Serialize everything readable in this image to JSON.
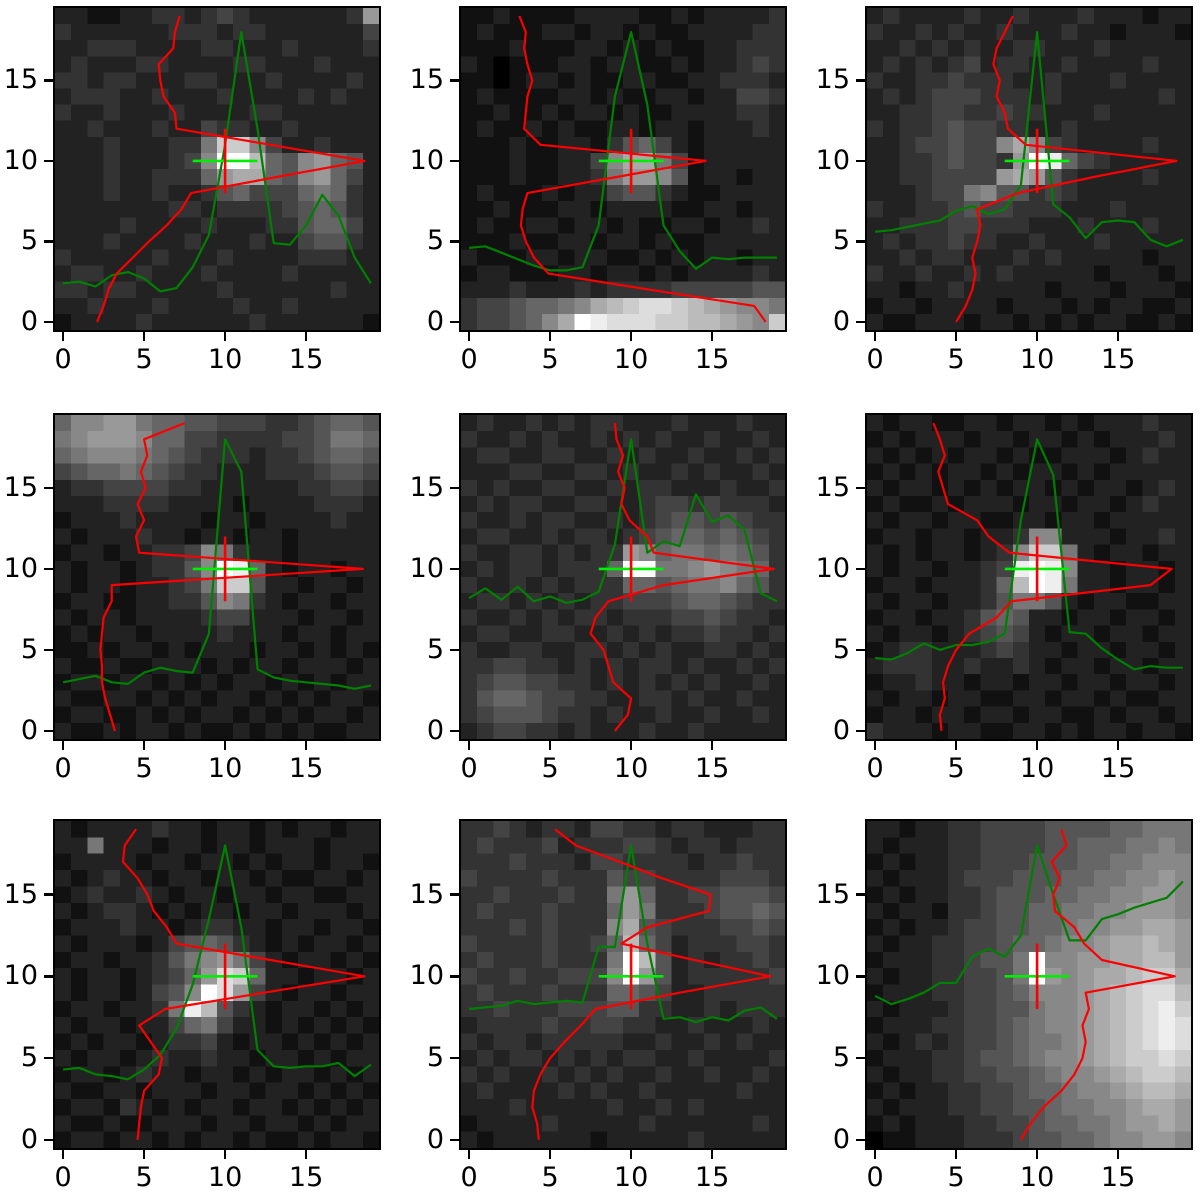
{
  "figure": {
    "background": "#ffffff",
    "description": "3x3 grid of grayscale 20x20 image cutouts, each overlaid with a green horizontal-cut profile curve, a red vertical-cut profile curve, and a green/red crosshair marker at pixel (10,10)."
  },
  "chart_data": {
    "type": "heatmap",
    "grid": {
      "rows": 3,
      "cols": 3
    },
    "axis": {
      "xlim": [
        -0.5,
        19.5
      ],
      "ylim": [
        -0.5,
        19.5
      ],
      "xticks": [
        0,
        5,
        10,
        15
      ],
      "yticks": [
        0,
        5,
        10,
        15
      ],
      "xtick_labels": [
        "0",
        "5",
        "10",
        "15"
      ],
      "ytick_labels": [
        "0",
        "5",
        "10",
        "15"
      ]
    },
    "colors": {
      "row_profile_green": "#008000",
      "col_profile_red": "#fb0000",
      "crosshair_h_green": "#00ee00",
      "crosshair_v_red": "#fb0000",
      "spine": "#000000",
      "tick": "#000000",
      "label": "#000000"
    },
    "crosshair": {
      "x": 10,
      "y": 10,
      "h_extent": [
        8,
        12
      ],
      "v_extent": [
        8,
        12
      ]
    },
    "pixel_value_scale": "hex digit 0-F times 17 gives 0-255 gray",
    "panels": [
      {
        "name": "panel-0-0",
        "image_rows_top_to_bottom": [
          "22112233234322222239",
          "32222223332332222224",
          "22333222233222322223",
          "23222332222332223222",
          "33233222332223222232",
          "23332232223222232322",
          "32232223222233222222",
          "22322232243322322222",
          "2223222337CC84223222",
          "2223222348FFB6589652",
          "22232233369AA6589642",
          "22232232235644467632",
          "22222223323333456532",
          "22223222232223356642",
          "22232222322232245532",
          "32222232223222233322",
          "23322322232222322222",
          "33233222223222222322",
          "22322232222322322222",
          "12222322222232222221"
        ],
        "green_profile": [
          2.4,
          2.5,
          2.2,
          2.9,
          3.1,
          2.7,
          1.9,
          2.1,
          3.4,
          5.4,
          11.0,
          18.0,
          12.0,
          4.9,
          4.8,
          6.0,
          7.9,
          6.6,
          4.0,
          2.4
        ],
        "red_profile": [
          2.1,
          2.5,
          2.8,
          3.3,
          4.3,
          5.3,
          6.4,
          7.3,
          7.9,
          13.2,
          18.6,
          12.8,
          7.0,
          6.9,
          6.2,
          6.0,
          5.9,
          6.8,
          6.9,
          7.2
        ]
      },
      {
        "name": "panel-0-1",
        "image_rows_top_to_bottom": [
          "11211112222112122223",
          "12111221221211222233",
          "11121112212121122333",
          "21011122122112122343",
          "11012212112211223332",
          "12111122121122122443",
          "11211212212112222332",
          "12112121122122122232",
          "11121122135642122222",
          "1112112248AA74122222",
          "11121122379985122122",
          "12111212245532112222",
          "11211122122221122122",
          "12112212212112212232",
          "11121122122121122222",
          "21112212211212122122",
          "12211122122121222232",
          "22232223233334444455",
          "34456678ABCDDCBA9887",
          "344568AFEDDDCCBBA98C"
        ],
        "green_profile": [
          4.6,
          4.7,
          4.3,
          3.9,
          3.5,
          3.2,
          3.2,
          3.4,
          6.0,
          14.0,
          18.0,
          13.5,
          6.0,
          4.4,
          3.3,
          4.0,
          3.9,
          4.0,
          4.0,
          4.0
        ],
        "red_profile": [
          18.3,
          17.6,
          11.2,
          4.9,
          4.0,
          3.5,
          3.2,
          3.3,
          3.6,
          9.1,
          14.6,
          4.4,
          3.4,
          3.5,
          3.6,
          3.9,
          3.6,
          3.4,
          3.5,
          3.1
        ]
      },
      {
        "name": "panel-0-2",
        "image_rows_top_to_bottom": [
          "23222232232223222122",
          "32232322322232212221",
          "22323232233222322222",
          "23232342332232222322",
          "32233433322322232222",
          "23234443332322222232",
          "22334433433222322222",
          "32334544332232222222",
          "223445448A8432222322",
          "2233454439FE64322222",
          "223344449A9532222322",
          "22234478553432222222",
          "32233454433322232222",
          "22333443332223222322",
          "23233433223222322222",
          "22323322232322222122",
          "32232232322222122212",
          "22122322222122212221",
          "12212222122212122112",
          "21122212212121221121"
        ],
        "green_profile": [
          5.6,
          5.7,
          5.9,
          6.1,
          6.3,
          6.9,
          7.2,
          6.7,
          7.0,
          8.5,
          18.0,
          7.3,
          6.5,
          5.2,
          6.2,
          6.3,
          6.2,
          5.1,
          4.7,
          5.1
        ],
        "red_profile": [
          5.0,
          5.6,
          6.0,
          6.2,
          6.0,
          6.3,
          6.5,
          6.3,
          8.8,
          13.5,
          18.6,
          9.3,
          8.2,
          8.0,
          7.5,
          7.7,
          7.3,
          7.5,
          8.0,
          8.5
        ]
      },
      {
        "name": "panel-1-0",
        "image_rows_top_to_bottom": [
          "68899766554443345665",
          "78999866443333445776",
          "67888765433323345665",
          "45667654332223334554",
          "23344443322222233443",
          "22233332222122223332",
          "12223222212212222322",
          "21222322122122122222",
          "12212233487322122222",
          "2122123358FE62122122",
          "2122122347CC52212212",
          "12211223358732122122",
          "21221222234422212212",
          "12122122223222122122",
          "11212212122212212121",
          "21121122212122122212",
          "12212212121221212122",
          "21122121212212121221",
          "12211212122121212212",
          "21121221211212121122"
        ],
        "green_profile": [
          3.0,
          3.2,
          3.4,
          3.0,
          2.9,
          3.6,
          3.9,
          3.7,
          3.6,
          6.0,
          18.0,
          16.0,
          3.8,
          3.3,
          3.1,
          3.0,
          2.9,
          2.8,
          2.6,
          2.8
        ],
        "red_profile": [
          3.2,
          2.9,
          2.6,
          2.4,
          2.4,
          2.3,
          2.4,
          2.5,
          3.0,
          3.0,
          18.5,
          4.7,
          4.5,
          5.0,
          4.6,
          5.1,
          4.8,
          5.2,
          5.0,
          7.5
        ]
      },
      {
        "name": "panel-1-1",
        "image_rows_top_to_bottom": [
          "23223232332223222322",
          "32232322323232232232",
          "23322332232322322323",
          "22233223323223232232",
          "32322332232332223223",
          "23233223322344343332",
          "32232332232345545433",
          "23322323323456656543",
          "32233232339867767653",
          "2323323336FF77898763",
          "32232323336656778653",
          "23323232334445665433",
          "32232323323334454332",
          "23322332232323343323",
          "32233223323232233232",
          "33443323232332322323",
          "34554433232323232232",
          "35665443322332322322",
          "34555433232232232232",
          "23443323222322322222"
        ],
        "green_profile": [
          8.2,
          8.8,
          8.1,
          8.9,
          8.0,
          8.3,
          7.9,
          8.1,
          8.6,
          11.5,
          18.0,
          11.0,
          11.7,
          11.4,
          14.6,
          12.9,
          13.3,
          12.4,
          8.5,
          8.0
        ],
        "red_profile": [
          9.0,
          9.8,
          10.0,
          8.9,
          8.6,
          8.3,
          7.5,
          7.8,
          8.6,
          12.0,
          18.8,
          11.4,
          11.0,
          9.9,
          9.4,
          9.6,
          9.2,
          9.5,
          9.1,
          9.0
        ]
      },
      {
        "name": "panel-1-2",
        "image_rows_top_to_bottom": [
          "21221122122121222322",
          "12122212212212122232",
          "21212122121122212322",
          "12121221212212122222",
          "21221212122121221232",
          "12112122212212212322",
          "21221221122122122222",
          "12212212238822212232",
          "2121221238CC72122122",
          "212212234EFE82212212",
          "122122236BFE72212212",
          "21221223577521221122",
          "12212235652212212212",
          "21221234542122122122",
          "12332223432212212212",
          "23332232232122122122",
          "12232212212212212212",
          "21221221122122121122",
          "12212212212211212212",
          "32221221122121221221"
        ],
        "green_profile": [
          4.5,
          4.4,
          4.8,
          5.4,
          5.0,
          5.3,
          5.3,
          5.5,
          6.0,
          13.0,
          18.0,
          15.8,
          6.1,
          6.0,
          5.1,
          4.4,
          3.8,
          4.0,
          3.9,
          3.9
        ],
        "red_profile": [
          4.1,
          4.0,
          4.3,
          4.2,
          4.5,
          5.0,
          5.8,
          7.5,
          8.4,
          17.0,
          18.3,
          8.3,
          7.0,
          6.3,
          4.5,
          4.2,
          3.9,
          4.3,
          4.0,
          3.6
        ]
      },
      {
        "name": "panel-2-0",
        "image_rows_top_to_bottom": [
          "21222232212212122122",
          "22722212212212221222",
          "12222122122121221221",
          "21232212212212112212",
          "12322321221221221122",
          "21233212122122122212",
          "12223221233221221221",
          "21222124565321212212",
          "12212235789742122121",
          "2122123469DC62212212",
          "212212458FD942122122",
          "12212237EB5321221212",
          "21221224674221212121",
          "12122123342122121212",
          "21221232232212212122",
          "12212322122121221212",
          "21122122212212212121",
          "12213212122122121212",
          "21121122212212212122",
          "12212212122121121221"
        ],
        "green_profile": [
          4.3,
          4.4,
          4.0,
          3.9,
          3.7,
          4.3,
          5.2,
          6.8,
          9.5,
          13.5,
          18.0,
          13.0,
          5.5,
          4.5,
          4.4,
          4.5,
          4.5,
          4.7,
          3.9,
          4.6
        ],
        "red_profile": [
          4.6,
          4.7,
          4.8,
          5.0,
          5.9,
          6.1,
          5.4,
          4.7,
          6.3,
          12.4,
          18.6,
          12.8,
          7.0,
          6.4,
          5.6,
          5.2,
          4.6,
          3.7,
          3.8,
          4.5
        ]
      },
      {
        "name": "panel-2-1",
        "image_rows_top_to_bottom": [
          "33432332443323322233",
          "34333423334432332333",
          "33343332443333233433",
          "43333433354433334443",
          "33433343379633445554",
          "34333433369733345565",
          "3334343338A543334454",
          "4333343346B642333443",
          "3433343337FB52323343",
          "4334334448F952333334",
          "34333433366542233333",
          "33433344455332232333",
          "23333433443322322232",
          "32332333332232232322",
          "23233232323322322223",
          "32322323232232232232",
          "23222232322322222322",
          "22232222232232322222",
          "12222322222322222232",
          "21222222122222322222"
        ],
        "green_profile": [
          8.0,
          8.1,
          8.2,
          8.5,
          8.3,
          8.4,
          8.5,
          8.4,
          11.8,
          11.8,
          18.0,
          12.0,
          7.4,
          7.5,
          7.2,
          7.5,
          7.3,
          7.9,
          8.1,
          7.4
        ],
        "red_profile": [
          4.3,
          4.2,
          3.9,
          4.0,
          4.4,
          5.0,
          5.9,
          6.9,
          7.8,
          13.0,
          18.6,
          13.9,
          9.4,
          11.0,
          14.8,
          14.9,
          11.9,
          9.3,
          6.6,
          5.3
        ]
      },
      {
        "name": "panel-2-2",
        "image_rows_top_to_bottom": [
          "22122334444555566777",
          "21222334444556667787",
          "12122334445556677888",
          "21222344455566778898",
          "12122334555667788998",
          "21221334556677889998",
          "12122344556678899AA9",
          "212233445667889AABA9",
          "1222334557F8899AABB9",
          "2122334457F989AABCCA",
          "12223344568889ABCDDB",
          "21222344557889ABCDEC",
          "12223344567889ABCDED",
          "21232344567789ABCDED",
          "12223345567889ABCCDC",
          "212233445567889ABCCB",
          "1212233445667889ABBA",
          "21222334455677889AA9",
          "121222334456677899A9",
          "01122233345566788998"
        ],
        "green_profile": [
          8.8,
          8.3,
          8.6,
          9.0,
          9.6,
          9.6,
          11.2,
          11.7,
          11.2,
          12.5,
          18.0,
          15.0,
          12.2,
          12.2,
          13.5,
          13.8,
          14.2,
          14.5,
          14.8,
          15.8
        ],
        "red_profile": [
          9.0,
          9.6,
          10.4,
          11.5,
          12.3,
          12.8,
          13.0,
          12.8,
          13.2,
          13.0,
          18.5,
          14.0,
          12.9,
          12.3,
          11.1,
          11.0,
          11.4,
          10.9,
          11.8,
          11.5
        ]
      }
    ]
  }
}
